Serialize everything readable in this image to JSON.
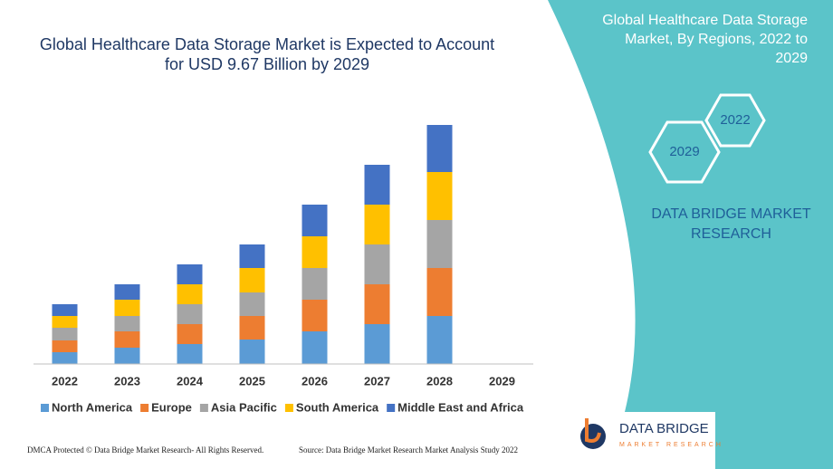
{
  "chart_data": {
    "type": "stacked-bar",
    "title": "Global Healthcare Data Storage Market is Expected to Account for USD 9.67 Billion by 2029",
    "categories": [
      "2022",
      "2023",
      "2024",
      "2025",
      "2026",
      "2027",
      "2028",
      "2029"
    ],
    "series": [
      {
        "name": "North America",
        "color": "#5b9bd5",
        "values": [
          13,
          18,
          22,
          27,
          36,
          44,
          53,
          null
        ]
      },
      {
        "name": "Europe",
        "color": "#ed7d31",
        "values": [
          13,
          18,
          22,
          26,
          35,
          44,
          53,
          null
        ]
      },
      {
        "name": "Asia Pacific",
        "color": "#a5a5a5",
        "values": [
          14,
          17,
          22,
          26,
          35,
          44,
          53,
          null
        ]
      },
      {
        "name": "South America",
        "color": "#ffc000",
        "values": [
          13,
          18,
          22,
          27,
          35,
          44,
          53,
          null
        ]
      },
      {
        "name": "Middle East and Africa",
        "color": "#4472c4",
        "values": [
          13,
          17,
          22,
          26,
          35,
          44,
          52,
          null
        ]
      }
    ],
    "legend": "bottom"
  },
  "panel": {
    "heading": "Global Healthcare Data Storage Market, By Regions, 2022 to 2029",
    "hex_start": "2022",
    "hex_end": "2029",
    "brand": "DATA BRIDGE MARKET RESEARCH"
  },
  "logo": {
    "name": "DATA BRIDGE",
    "tagline": "MARKET RESEARCH"
  },
  "footer": {
    "left": "DMCA Protected © Data Bridge Market Research- All Rights Reserved.",
    "right": "Source: Data Bridge Market Research Market Analysis Study 2022"
  }
}
